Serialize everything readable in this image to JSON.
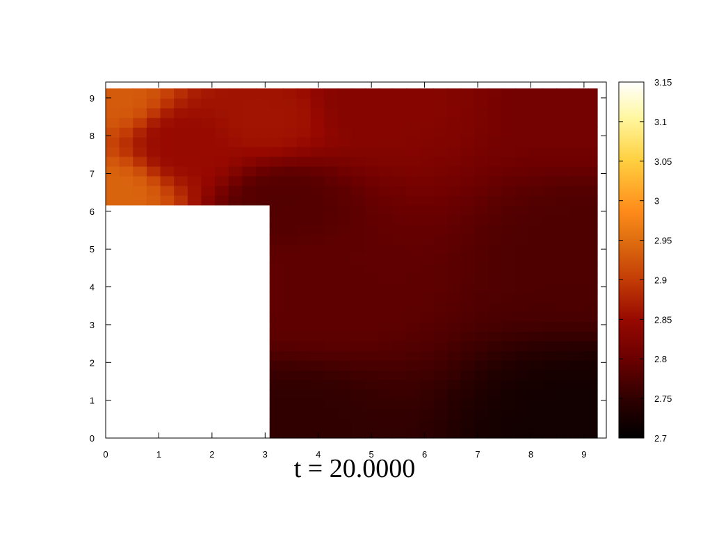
{
  "chart_data": {
    "type": "heatmap",
    "title": "t = 20.0000",
    "xlabel": "",
    "ylabel": "",
    "xlim": [
      0,
      9.42
    ],
    "ylim": [
      0,
      9.42
    ],
    "x_ticks": [
      "0",
      "1",
      "2",
      "3",
      "4",
      "5",
      "6",
      "7",
      "8",
      "9"
    ],
    "y_ticks": [
      "0",
      "1",
      "2",
      "3",
      "4",
      "5",
      "6",
      "7",
      "8",
      "9"
    ],
    "colorbar": {
      "range": [
        2.7,
        3.15
      ],
      "ticks": [
        "2.7",
        "2.75",
        "2.8",
        "2.85",
        "2.9",
        "2.95",
        "3",
        "3.05",
        "3.1",
        "3.15"
      ],
      "palette": "black-red-orange-yellow-white"
    },
    "grid": false,
    "domain": {
      "extent": [
        0,
        9.25,
        0,
        9.25
      ],
      "excluded_region": {
        "x": [
          0,
          3.14
        ],
        "y": [
          0,
          6.28
        ]
      },
      "upper_left_block": {
        "x": [
          0,
          3.14
        ],
        "y": [
          6.28,
          9.25
        ]
      },
      "right_block": {
        "x": [
          3.14,
          9.25
        ],
        "y": [
          0,
          9.25
        ]
      }
    },
    "field_samples": [
      {
        "x": 0.1,
        "y": 9.1,
        "value": 2.93
      },
      {
        "x": 0.1,
        "y": 6.4,
        "value": 2.94
      },
      {
        "x": 1.5,
        "y": 7.8,
        "value": 2.85
      },
      {
        "x": 3.0,
        "y": 8.5,
        "value": 2.86
      },
      {
        "x": 3.3,
        "y": 6.2,
        "value": 2.78
      },
      {
        "x": 5.0,
        "y": 9.0,
        "value": 2.83
      },
      {
        "x": 9.0,
        "y": 9.0,
        "value": 2.81
      },
      {
        "x": 4.0,
        "y": 4.0,
        "value": 2.79
      },
      {
        "x": 9.0,
        "y": 5.0,
        "value": 2.775
      },
      {
        "x": 3.5,
        "y": 0.2,
        "value": 2.75
      },
      {
        "x": 9.0,
        "y": 0.2,
        "value": 2.72
      }
    ]
  }
}
